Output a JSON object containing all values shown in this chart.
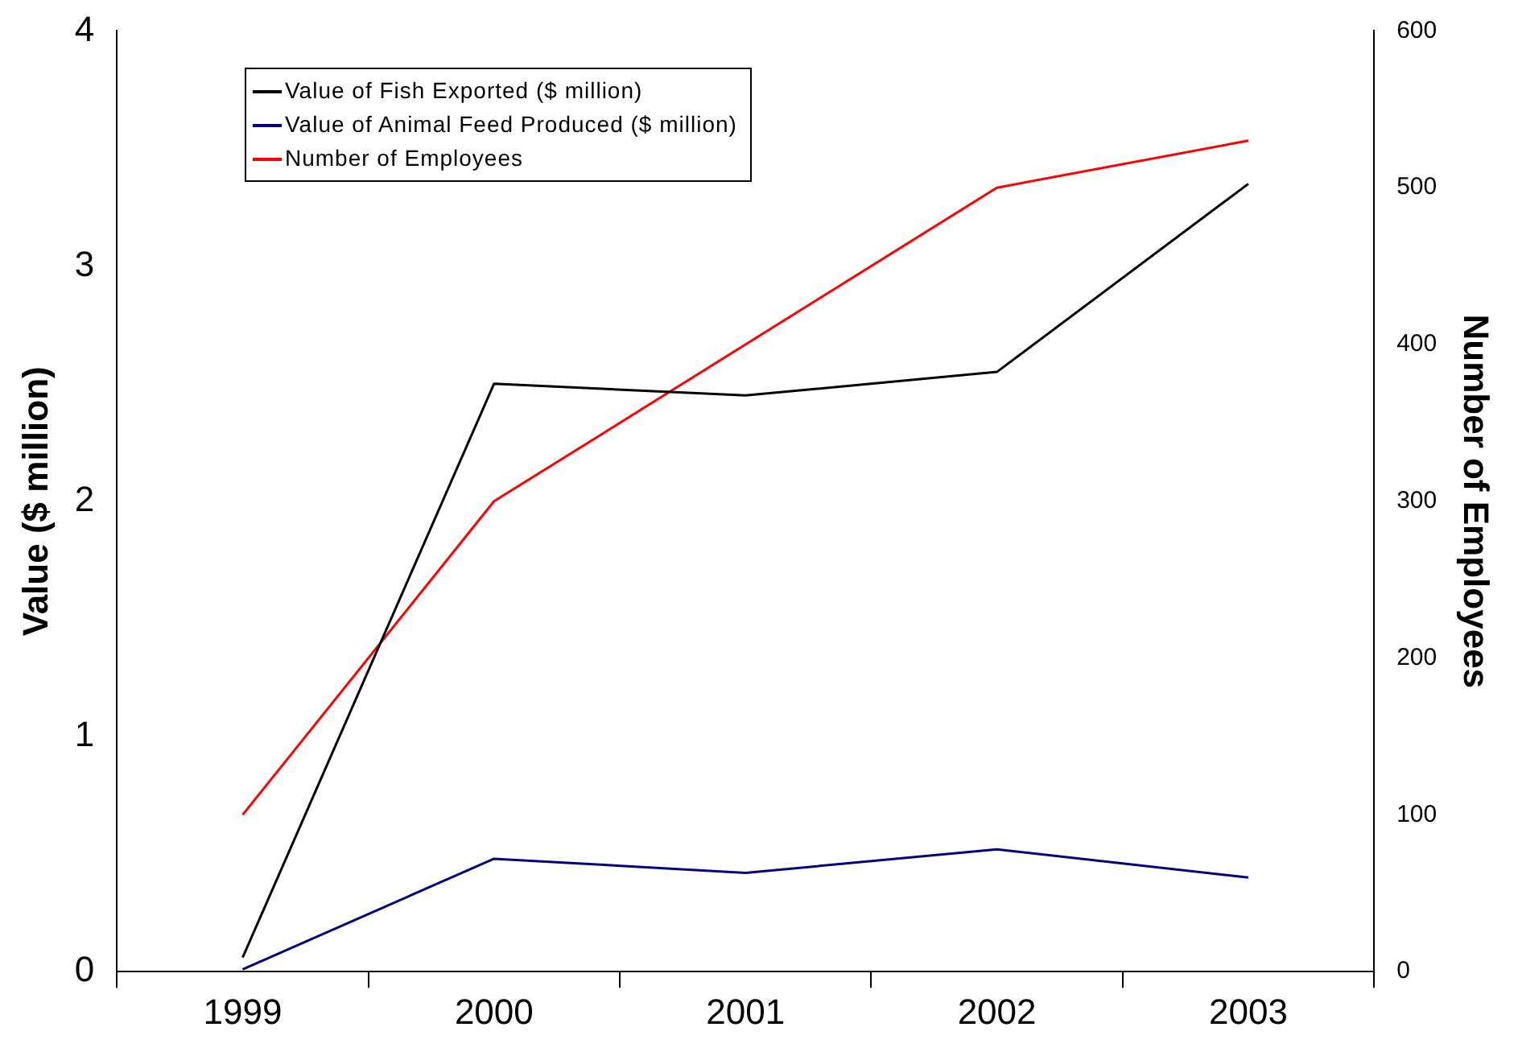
{
  "chart_data": {
    "type": "line",
    "ylabel": "Value ($ million)",
    "y2label": "Number of Employees",
    "categories": [
      "1999",
      "2000",
      "2001",
      "2002",
      "2003"
    ],
    "series": [
      {
        "name": "Value of Fish Exported ($ million)",
        "color": "#000000",
        "values": [
          0.06,
          2.5,
          2.45,
          2.55,
          3.35
        ]
      },
      {
        "name": "Value of Animal Feed Produced ($ million)",
        "color": "#000080",
        "values": [
          0.01,
          0.48,
          0.42,
          0.52,
          0.4
        ]
      },
      {
        "name": "Number of Employees",
        "color": "#ff0000",
        "values": [
          100,
          300,
          400,
          500,
          530
        ],
        "axis": "y2"
      }
    ],
    "ylim": [
      0,
      4
    ],
    "yticks": [
      0,
      1,
      2,
      3,
      4
    ],
    "y2lim": [
      0,
      600
    ],
    "y2ticks": [
      0,
      100,
      200,
      300,
      400,
      500,
      600
    ],
    "grid": false,
    "legend": "top left",
    "marker": "none",
    "line_style": "solid"
  }
}
